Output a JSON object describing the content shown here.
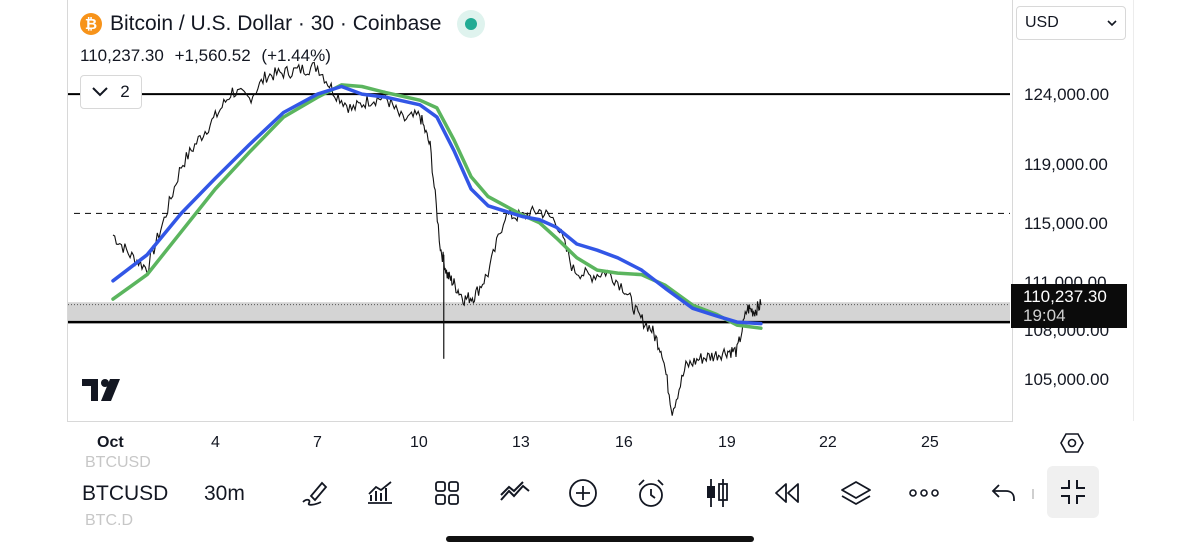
{
  "header": {
    "coin_glyph": "₿",
    "title": "Bitcoin / U.S. Dollar · 30 · Coinbase",
    "last_price": "110,237.30",
    "change": "+1,560.52",
    "change_pct": "(+1.44%)",
    "indicators_count": "2",
    "status_color": "#22ab94"
  },
  "currency": {
    "selected": "USD"
  },
  "price_axis": {
    "labels": [
      "124,000.00",
      "119,000.00",
      "115,000.00",
      "111,000.00",
      "108,000.00",
      "105,000.00"
    ],
    "current_price": "110,237.30",
    "countdown": "19:04"
  },
  "time_axis": {
    "labels": [
      "Oct",
      "4",
      "7",
      "10",
      "13",
      "16",
      "19",
      "22",
      "25"
    ]
  },
  "toolbar": {
    "ghost_top": "BTCUSD",
    "symbol": "BTCUSD",
    "ghost_bottom": "BTC.D",
    "interval": "30m",
    "icons": [
      "drawing-pen-icon",
      "indicators-icon",
      "widgets-grid-icon",
      "compare-icon",
      "add-circle-icon",
      "alarm-icon",
      "candles-icon",
      "replay-icon",
      "layers-icon",
      "more-icon",
      "undo-icon",
      "exit-fullscreen-icon"
    ]
  },
  "colors": {
    "ma_fast": "#3256e6",
    "ma_slow": "#5bb55e",
    "candles": "#111111",
    "zone_fill": "#d4d4d4"
  },
  "chart_data": {
    "type": "line",
    "title": "Bitcoin / U.S. Dollar · 30 · Coinbase",
    "x_unit": "day of October",
    "xlim": [
      1,
      28
    ],
    "ylim": [
      102000,
      127000
    ],
    "levels": {
      "resistance": 124000,
      "support": 109100,
      "dashed": 116200,
      "zone": [
        109100,
        110400
      ]
    },
    "series": [
      {
        "type": "price",
        "x": [
          1,
          1.5,
          2,
          2.5,
          3,
          3.5,
          4,
          4.5,
          5,
          5.5,
          6,
          6.5,
          7,
          7.5,
          8,
          8.5,
          9,
          9.5,
          10,
          10.3,
          10.6,
          10.8,
          11,
          11.3,
          11.6,
          12,
          12.5,
          13,
          13.5,
          14,
          14.5,
          15,
          15.5,
          16,
          16.4,
          16.8,
          17.1,
          17.4,
          17.8,
          18.2,
          18.6,
          19,
          19.3,
          19.6,
          19.8,
          20
        ],
        "y": [
          114800,
          113500,
          112600,
          115800,
          119300,
          121000,
          122500,
          124200,
          123700,
          125200,
          125400,
          125600,
          125800,
          124100,
          123000,
          123600,
          123800,
          122300,
          122600,
          120600,
          114000,
          112200,
          111600,
          110600,
          110800,
          112300,
          116100,
          116000,
          116400,
          115700,
          112500,
          112100,
          112400,
          111300,
          109500,
          108600,
          107200,
          103300,
          106200,
          106700,
          106900,
          107200,
          107200,
          110000,
          109800,
          110237
        ]
      },
      {
        "name": "",
        "type": "ma_fast",
        "x": [
          1,
          2,
          3,
          4,
          5,
          6,
          7,
          7.7,
          8.3,
          9,
          10,
          10.5,
          11,
          11.5,
          12,
          13,
          13.5,
          14,
          14.6,
          15.2,
          15.8,
          16.5,
          17.2,
          18,
          18.7,
          19.3,
          20
        ],
        "y": [
          111800,
          113500,
          116200,
          118500,
          120700,
          122800,
          124000,
          124500,
          124000,
          123800,
          123300,
          122500,
          120300,
          117800,
          116700,
          116000,
          115800,
          115300,
          114200,
          113800,
          113300,
          112500,
          111300,
          110000,
          109500,
          109100,
          109000
        ]
      },
      {
        "name": "",
        "type": "ma_slow",
        "x": [
          1,
          2,
          3,
          4,
          5,
          6,
          7,
          7.7,
          8.3,
          9,
          10,
          10.5,
          11,
          11.5,
          12,
          13,
          13.5,
          14,
          14.6,
          15.2,
          15.8,
          16.5,
          17.2,
          18,
          18.7,
          19.3,
          20
        ],
        "y": [
          110600,
          112200,
          115000,
          117800,
          120200,
          122500,
          123800,
          124600,
          124500,
          124100,
          123600,
          123100,
          121000,
          118600,
          117300,
          116100,
          115600,
          114600,
          113300,
          112500,
          112300,
          112200,
          111500,
          110200,
          109600,
          108900,
          108700
        ]
      }
    ]
  }
}
